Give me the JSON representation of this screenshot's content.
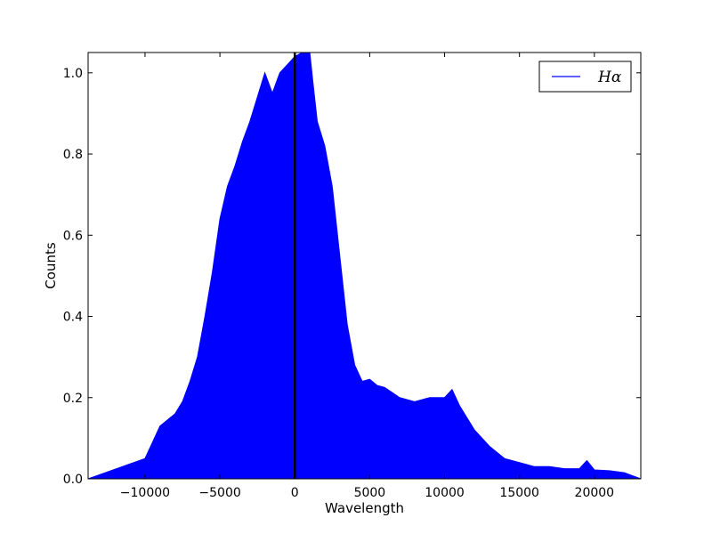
{
  "chart_data": {
    "type": "area",
    "title": "",
    "xlabel": "Wavelength",
    "ylabel": "Counts",
    "xlim": [
      -13800,
      23100
    ],
    "ylim": [
      0,
      1.05
    ],
    "x_ticks": [
      -10000,
      -5000,
      0,
      5000,
      10000,
      15000,
      20000
    ],
    "y_ticks": [
      0.0,
      0.2,
      0.4,
      0.6,
      0.8,
      1.0
    ],
    "x_tick_labels": [
      "−10000",
      "−5000",
      "0",
      "5000",
      "10000",
      "15000",
      "20000"
    ],
    "y_tick_labels": [
      "0.0",
      "0.2",
      "0.4",
      "0.6",
      "0.8",
      "1.0"
    ],
    "grid": false,
    "legend_position": "top-right",
    "vertical_line_x": 0,
    "series": [
      {
        "name": "Hα",
        "color": "#0000ff",
        "x": [
          -13800,
          -10000,
          -9000,
          -8000,
          -7500,
          -7000,
          -6500,
          -6000,
          -5500,
          -5000,
          -4500,
          -4000,
          -3500,
          -3000,
          -2500,
          -2000,
          -1800,
          -1500,
          -1200,
          -1000,
          -500,
          0,
          500,
          1000,
          1200,
          1500,
          2000,
          2500,
          3000,
          3500,
          4000,
          4500,
          5000,
          5500,
          6000,
          7000,
          8000,
          9000,
          10000,
          10500,
          11000,
          12000,
          13000,
          14000,
          15000,
          16000,
          17000,
          18000,
          19000,
          19500,
          20000,
          21000,
          22000,
          23100
        ],
        "values": [
          0.0,
          0.05,
          0.13,
          0.16,
          0.19,
          0.24,
          0.3,
          0.4,
          0.51,
          0.64,
          0.72,
          0.77,
          0.83,
          0.88,
          0.94,
          1.0,
          0.98,
          0.95,
          0.98,
          1.0,
          1.02,
          1.04,
          1.05,
          1.05,
          0.98,
          0.88,
          0.82,
          0.72,
          0.55,
          0.38,
          0.28,
          0.24,
          0.245,
          0.23,
          0.225,
          0.2,
          0.19,
          0.2,
          0.2,
          0.22,
          0.18,
          0.12,
          0.08,
          0.05,
          0.04,
          0.03,
          0.03,
          0.025,
          0.025,
          0.045,
          0.022,
          0.02,
          0.015,
          0.0
        ]
      }
    ]
  }
}
